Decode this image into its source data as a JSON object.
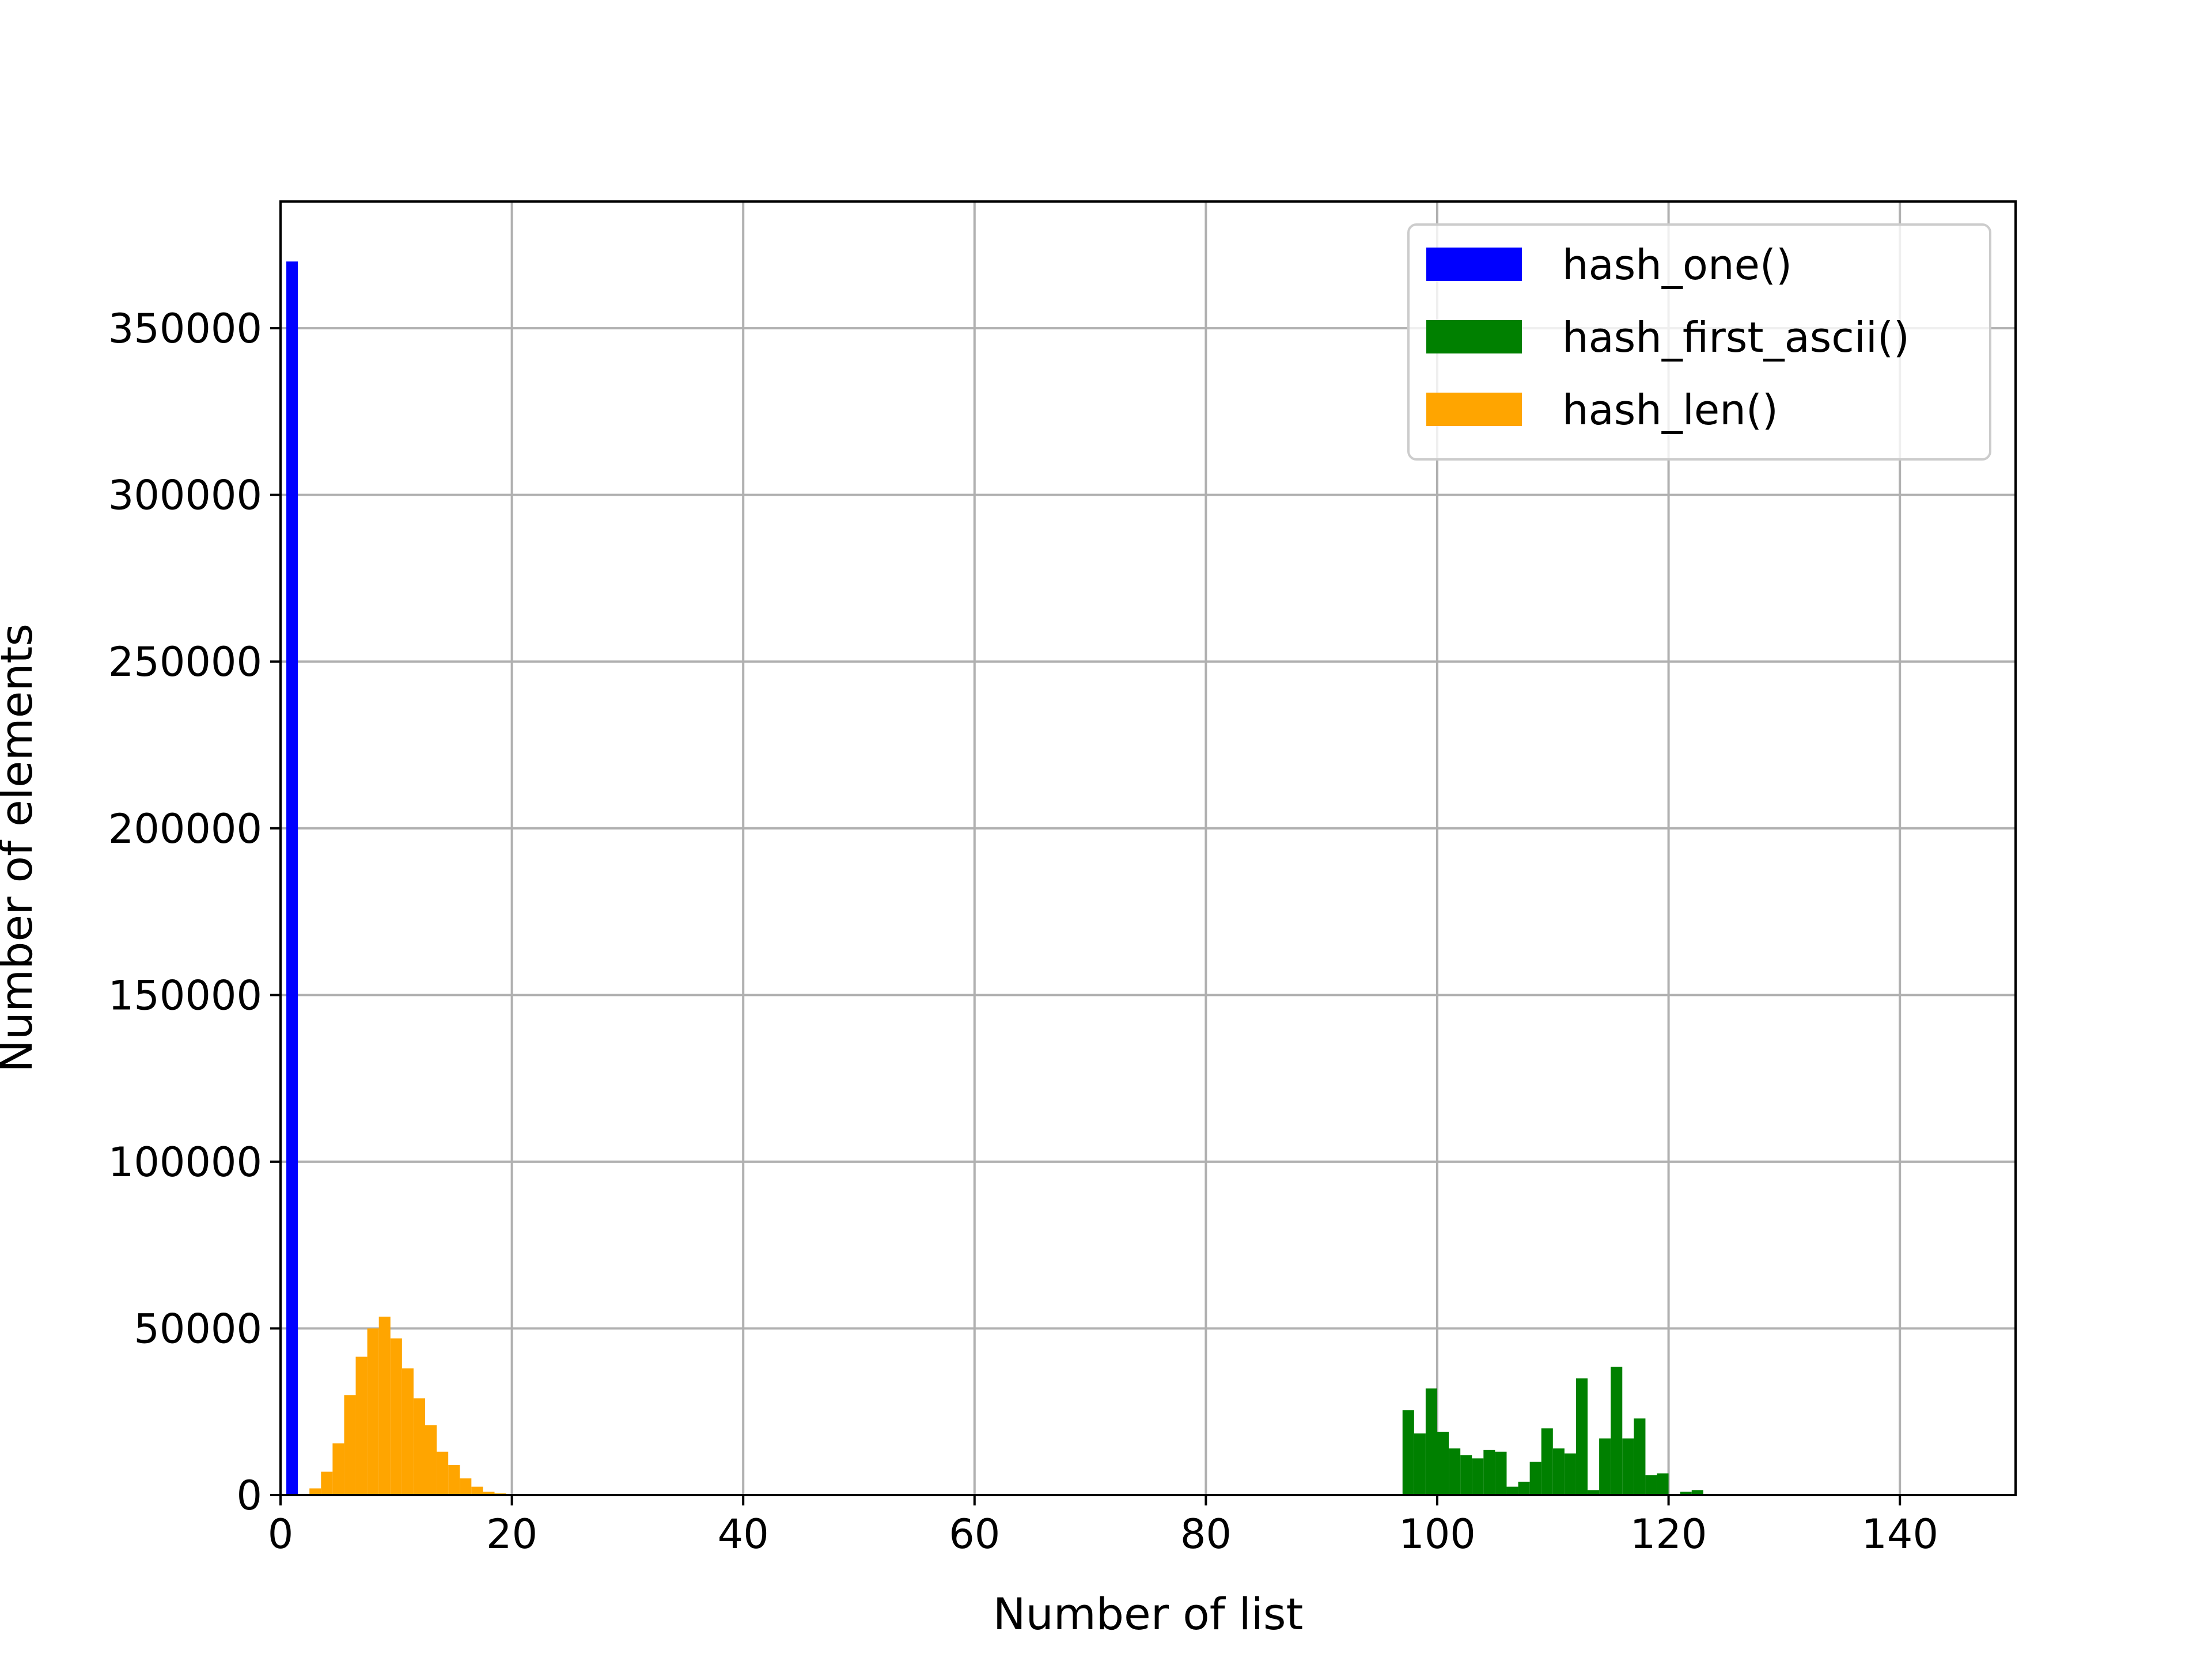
{
  "chart_data": {
    "type": "bar",
    "title": "",
    "xlabel": "Number of list",
    "ylabel": "Number of elements",
    "xlim": [
      0,
      150
    ],
    "ylim": [
      0,
      388000
    ],
    "xticks": [
      0,
      20,
      40,
      60,
      80,
      100,
      120,
      140
    ],
    "yticks": [
      0,
      50000,
      100000,
      150000,
      200000,
      250000,
      300000,
      350000
    ],
    "grid": true,
    "legend_position": "top-right",
    "bin_width": 1,
    "series": [
      {
        "name": "hash_one()",
        "color": "#0000ff",
        "bins": [
          [
            0.5,
            370000
          ]
        ]
      },
      {
        "name": "hash_first_ascii()",
        "color": "#008000",
        "bins": [
          [
            97,
            25500
          ],
          [
            98,
            18500
          ],
          [
            99,
            32000
          ],
          [
            100,
            19000
          ],
          [
            101,
            14000
          ],
          [
            102,
            12000
          ],
          [
            103,
            11000
          ],
          [
            104,
            13500
          ],
          [
            105,
            13000
          ],
          [
            106,
            2500
          ],
          [
            107,
            4000
          ],
          [
            108,
            10000
          ],
          [
            109,
            20000
          ],
          [
            110,
            14000
          ],
          [
            111,
            12500
          ],
          [
            112,
            35000
          ],
          [
            113,
            1500
          ],
          [
            114,
            17000
          ],
          [
            115,
            38500
          ],
          [
            116,
            17000
          ],
          [
            117,
            23000
          ],
          [
            118,
            6000
          ],
          [
            119,
            6500
          ],
          [
            120,
            0
          ],
          [
            121,
            1000
          ],
          [
            122,
            1500
          ]
        ]
      },
      {
        "name": "hash_len()",
        "color": "#ffa500",
        "bins": [
          [
            2.5,
            2000
          ],
          [
            3.5,
            7000
          ],
          [
            4.5,
            15500
          ],
          [
            5.5,
            30000
          ],
          [
            6.5,
            41500
          ],
          [
            7.5,
            50000
          ],
          [
            8.5,
            53500
          ],
          [
            9.5,
            47000
          ],
          [
            10.5,
            38000
          ],
          [
            11.5,
            29000
          ],
          [
            12.5,
            21000
          ],
          [
            13.5,
            13000
          ],
          [
            14.5,
            9000
          ],
          [
            15.5,
            5000
          ],
          [
            16.5,
            2500
          ],
          [
            17.5,
            1000
          ],
          [
            18.5,
            500
          ],
          [
            19.5,
            300
          ]
        ]
      }
    ]
  }
}
